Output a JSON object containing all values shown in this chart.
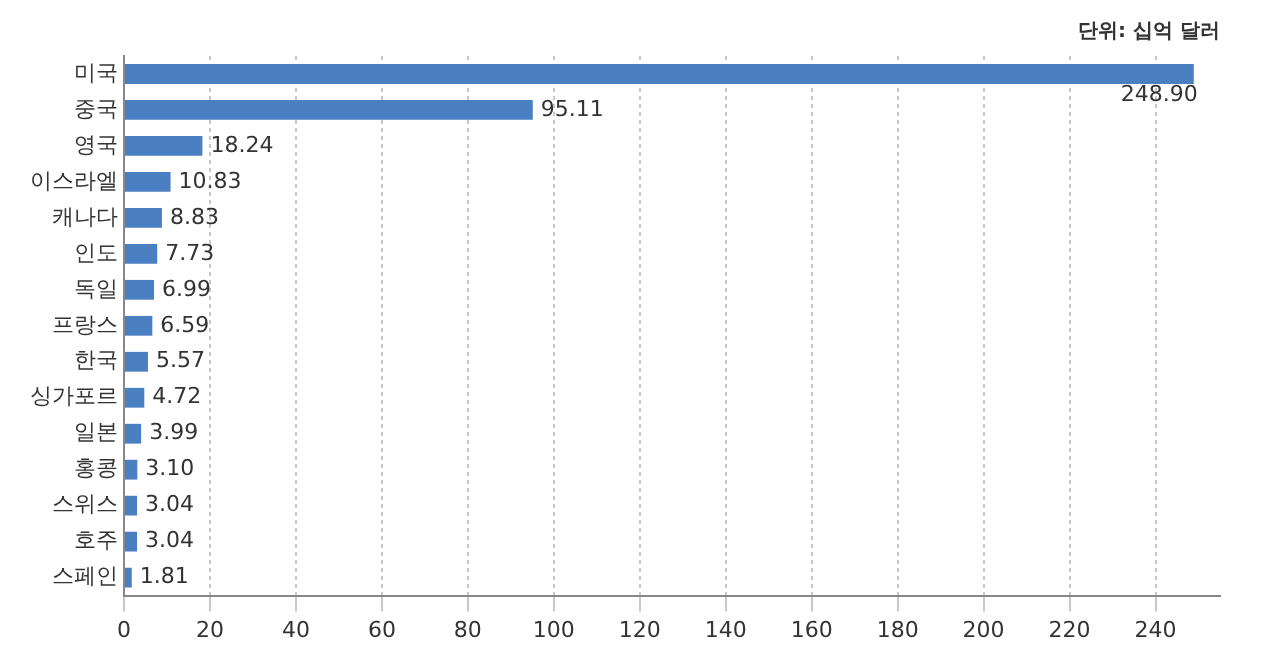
{
  "chart_data": {
    "type": "bar",
    "orientation": "horizontal",
    "annotations": [
      "단위: 십억 달러"
    ],
    "categories": [
      "미국",
      "중국",
      "영국",
      "이스라엘",
      "캐나다",
      "인도",
      "독일",
      "프랑스",
      "한국",
      "싱가포르",
      "일본",
      "홍콩",
      "스위스",
      "호주",
      "스페인"
    ],
    "values": [
      248.9,
      95.11,
      18.24,
      10.83,
      8.83,
      7.73,
      6.99,
      6.59,
      5.57,
      4.72,
      3.99,
      3.1,
      3.04,
      3.04,
      1.81
    ],
    "value_labels": [
      "248.90",
      "95.11",
      "18.24",
      "10.83",
      "8.83",
      "7.73",
      "6.99",
      "6.59",
      "5.57",
      "4.72",
      "3.99",
      "3.10",
      "3.04",
      "3.04",
      "1.81"
    ],
    "color": "#4a7fc1",
    "xlim": [
      0,
      255
    ],
    "xticks": [
      0,
      20,
      40,
      60,
      80,
      100,
      120,
      140,
      160,
      180,
      200,
      220,
      240
    ],
    "grid": "x",
    "legend": false
  }
}
